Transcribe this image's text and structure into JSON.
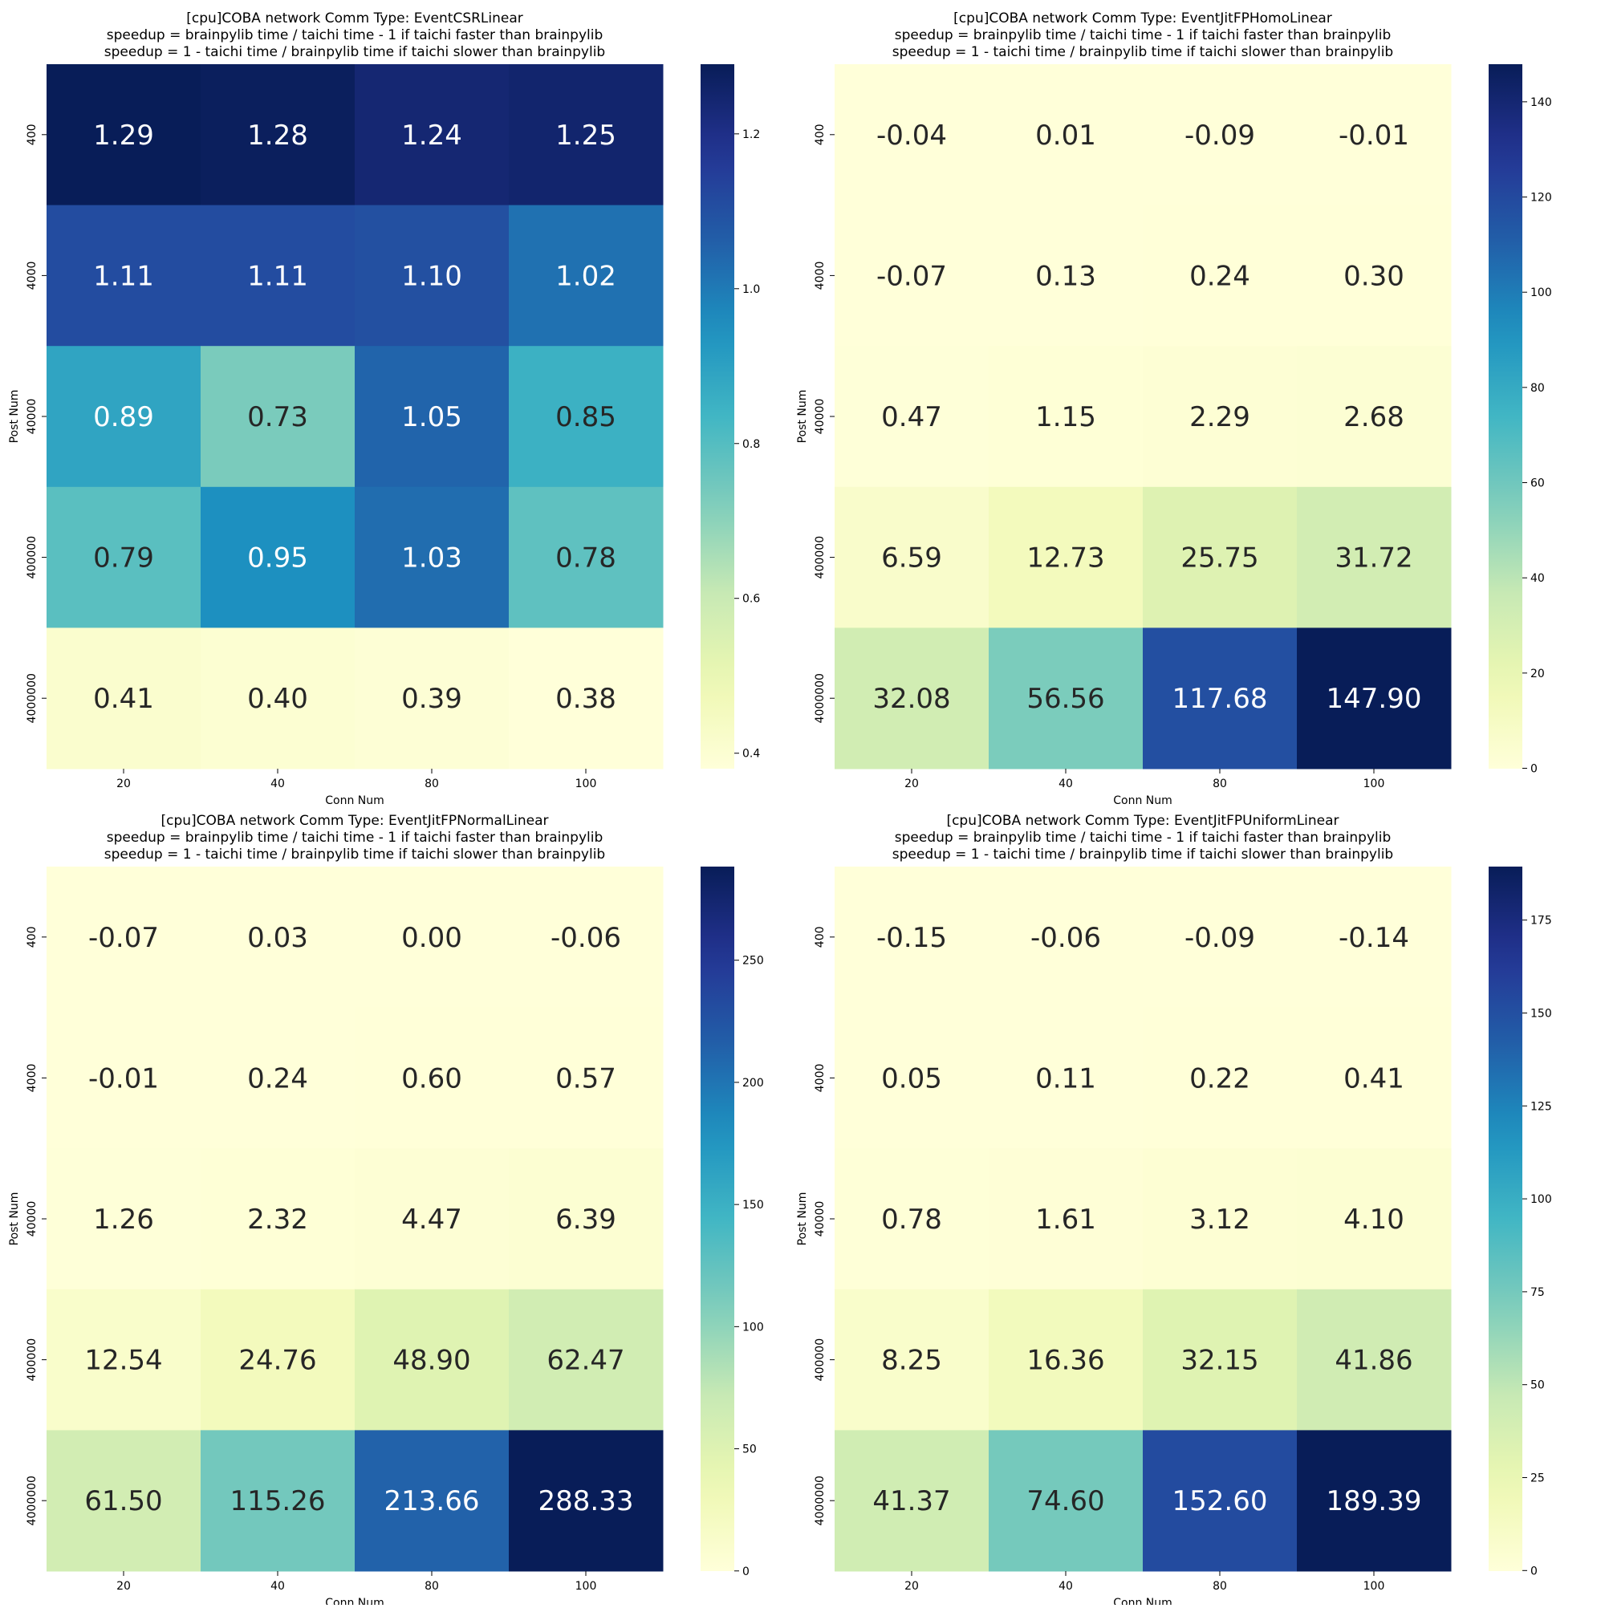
{
  "chart_data": [
    {
      "type": "heatmap",
      "title_lines": [
        "[cpu]COBA network Comm Type: EventCSRLinear",
        "speedup = brainpylib time / taichi time - 1 if taichi faster than brainpylib",
        "speedup = 1 - taichi time / brainpylib time if taichi slower than brainpylib"
      ],
      "xlabel": "Conn Num",
      "ylabel": "Post Num",
      "x_categories": [
        "20",
        "40",
        "80",
        "100"
      ],
      "y_categories": [
        "400",
        "4000",
        "40000",
        "400000",
        "4000000"
      ],
      "values": [
        [
          1.29,
          1.28,
          1.24,
          1.25
        ],
        [
          1.11,
          1.11,
          1.1,
          1.02
        ],
        [
          0.89,
          0.73,
          1.05,
          0.85
        ],
        [
          0.79,
          0.95,
          1.03,
          0.78
        ],
        [
          0.41,
          0.4,
          0.39,
          0.38
        ]
      ],
      "colormap": "YlGnBu",
      "vmin": 0.38,
      "vmax": 1.29,
      "colorbar_ticks": [
        "0.4",
        "0.6",
        "0.8",
        "1.0",
        "1.2"
      ]
    },
    {
      "type": "heatmap",
      "title_lines": [
        "[cpu]COBA network Comm Type: EventJitFPHomoLinear",
        "speedup = brainpylib time / taichi time - 1 if taichi faster than brainpylib",
        "speedup = 1 - taichi time / brainpylib time if taichi slower than brainpylib"
      ],
      "xlabel": "Conn Num",
      "ylabel": "Post Num",
      "x_categories": [
        "20",
        "40",
        "80",
        "100"
      ],
      "y_categories": [
        "400",
        "4000",
        "40000",
        "400000",
        "4000000"
      ],
      "values": [
        [
          -0.04,
          0.01,
          -0.09,
          -0.01
        ],
        [
          -0.07,
          0.13,
          0.24,
          0.3
        ],
        [
          0.47,
          1.15,
          2.29,
          2.68
        ],
        [
          6.59,
          12.73,
          25.75,
          31.72
        ],
        [
          32.08,
          56.56,
          117.68,
          147.9
        ]
      ],
      "colormap": "YlGnBu",
      "vmin": -0.09,
      "vmax": 147.9,
      "colorbar_ticks": [
        "0",
        "20",
        "40",
        "60",
        "80",
        "100",
        "120",
        "140"
      ]
    },
    {
      "type": "heatmap",
      "title_lines": [
        "[cpu]COBA network Comm Type: EventJitFPNormalLinear",
        "speedup = brainpylib time / taichi time - 1 if taichi faster than brainpylib",
        "speedup = 1 - taichi time / brainpylib time if taichi slower than brainpylib"
      ],
      "xlabel": "Conn Num",
      "ylabel": "Post Num",
      "x_categories": [
        "20",
        "40",
        "80",
        "100"
      ],
      "y_categories": [
        "400",
        "4000",
        "40000",
        "400000",
        "4000000"
      ],
      "values": [
        [
          -0.07,
          0.03,
          -0.0,
          -0.06
        ],
        [
          -0.01,
          0.24,
          0.6,
          0.57
        ],
        [
          1.26,
          2.32,
          4.47,
          6.39
        ],
        [
          12.54,
          24.76,
          48.9,
          62.47
        ],
        [
          61.5,
          115.26,
          213.66,
          288.33
        ]
      ],
      "colormap": "YlGnBu",
      "vmin": -0.07,
      "vmax": 288.33,
      "colorbar_ticks": [
        "0",
        "50",
        "100",
        "150",
        "200",
        "250"
      ]
    },
    {
      "type": "heatmap",
      "title_lines": [
        "[cpu]COBA network Comm Type: EventJitFPUniformLinear",
        "speedup = brainpylib time / taichi time - 1 if taichi faster than brainpylib",
        "speedup = 1 - taichi time / brainpylib time if taichi slower than brainpylib"
      ],
      "xlabel": "Conn Num",
      "ylabel": "Post Num",
      "x_categories": [
        "20",
        "40",
        "80",
        "100"
      ],
      "y_categories": [
        "400",
        "4000",
        "40000",
        "400000",
        "4000000"
      ],
      "values": [
        [
          -0.15,
          -0.06,
          -0.09,
          -0.14
        ],
        [
          0.05,
          0.11,
          0.22,
          0.41
        ],
        [
          0.78,
          1.61,
          3.12,
          4.1
        ],
        [
          8.25,
          16.36,
          32.15,
          41.86
        ],
        [
          41.37,
          74.6,
          152.6,
          189.39
        ]
      ],
      "colormap": "YlGnBu",
      "vmin": -0.15,
      "vmax": 189.39,
      "colorbar_ticks": [
        "0",
        "25",
        "50",
        "75",
        "100",
        "125",
        "150",
        "175"
      ]
    }
  ]
}
